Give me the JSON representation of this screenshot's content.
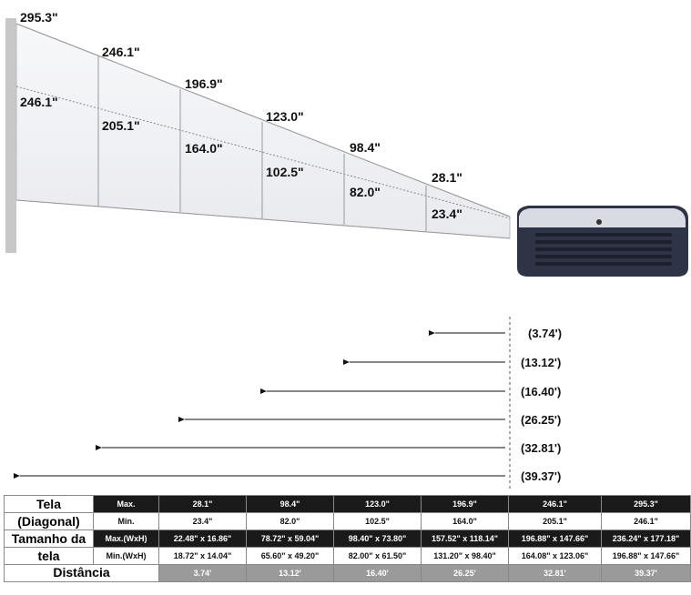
{
  "screen_labels": {
    "max": [
      "295.3\"",
      "246.1\"",
      "196.9\"",
      "123.0\"",
      "98.4\"",
      "28.1\""
    ],
    "min": [
      "246.1\"",
      "205.1\"",
      "164.0\"",
      "102.5\"",
      "82.0\"",
      "23.4\""
    ]
  },
  "distances": [
    "(3.74')",
    "(13.12')",
    "(16.40')",
    "(26.25')",
    "(32.81')",
    "(39.37')"
  ],
  "table": {
    "label_screen_1": "Tela",
    "label_screen_2": "(Diagonal)",
    "label_size_1": "Tamanho da",
    "label_size_2": "tela",
    "label_distance": "Distância",
    "row_max_label": "Max.",
    "row_min_label": "Min.",
    "row_maxwh_label": "Max.(WxH)",
    "row_minwh_label": "Min.(WxH)",
    "max_diag": [
      "28.1\"",
      "98.4\"",
      "123.0\"",
      "196.9\"",
      "246.1\"",
      "295.3\""
    ],
    "min_diag": [
      "23.4\"",
      "82.0\"",
      "102.5\"",
      "164.0\"",
      "205.1\"",
      "246.1\""
    ],
    "max_wh": [
      "22.48\" x 16.86\"",
      "78.72\" x 59.04\"",
      "98.40\" x 73.80\"",
      "157.52\" x 118.14\"",
      "196.88\" x 147.66\"",
      "236.24\" x 177.18\""
    ],
    "min_wh": [
      "18.72\" x 14.04\"",
      "65.60\" x 49.20\"",
      "82.00\" x 61.50\"",
      "131.20\" x 98.40\"",
      "164.08\" x 123.06\"",
      "196.88\" x 147.66\""
    ],
    "distance": [
      "3.74'",
      "13.12'",
      "16.40'",
      "26.25'",
      "32.81'",
      "39.37'"
    ]
  },
  "colors": {
    "projector_body": "#2f3346",
    "projector_top": "#d9dbe3",
    "screen_fill": "#f2f3f6",
    "dark_row": "#1a1a1a",
    "gray_row": "#9a9a9a"
  },
  "icons": {
    "projector": "projector-icon",
    "arrow": "arrow-left-icon"
  }
}
